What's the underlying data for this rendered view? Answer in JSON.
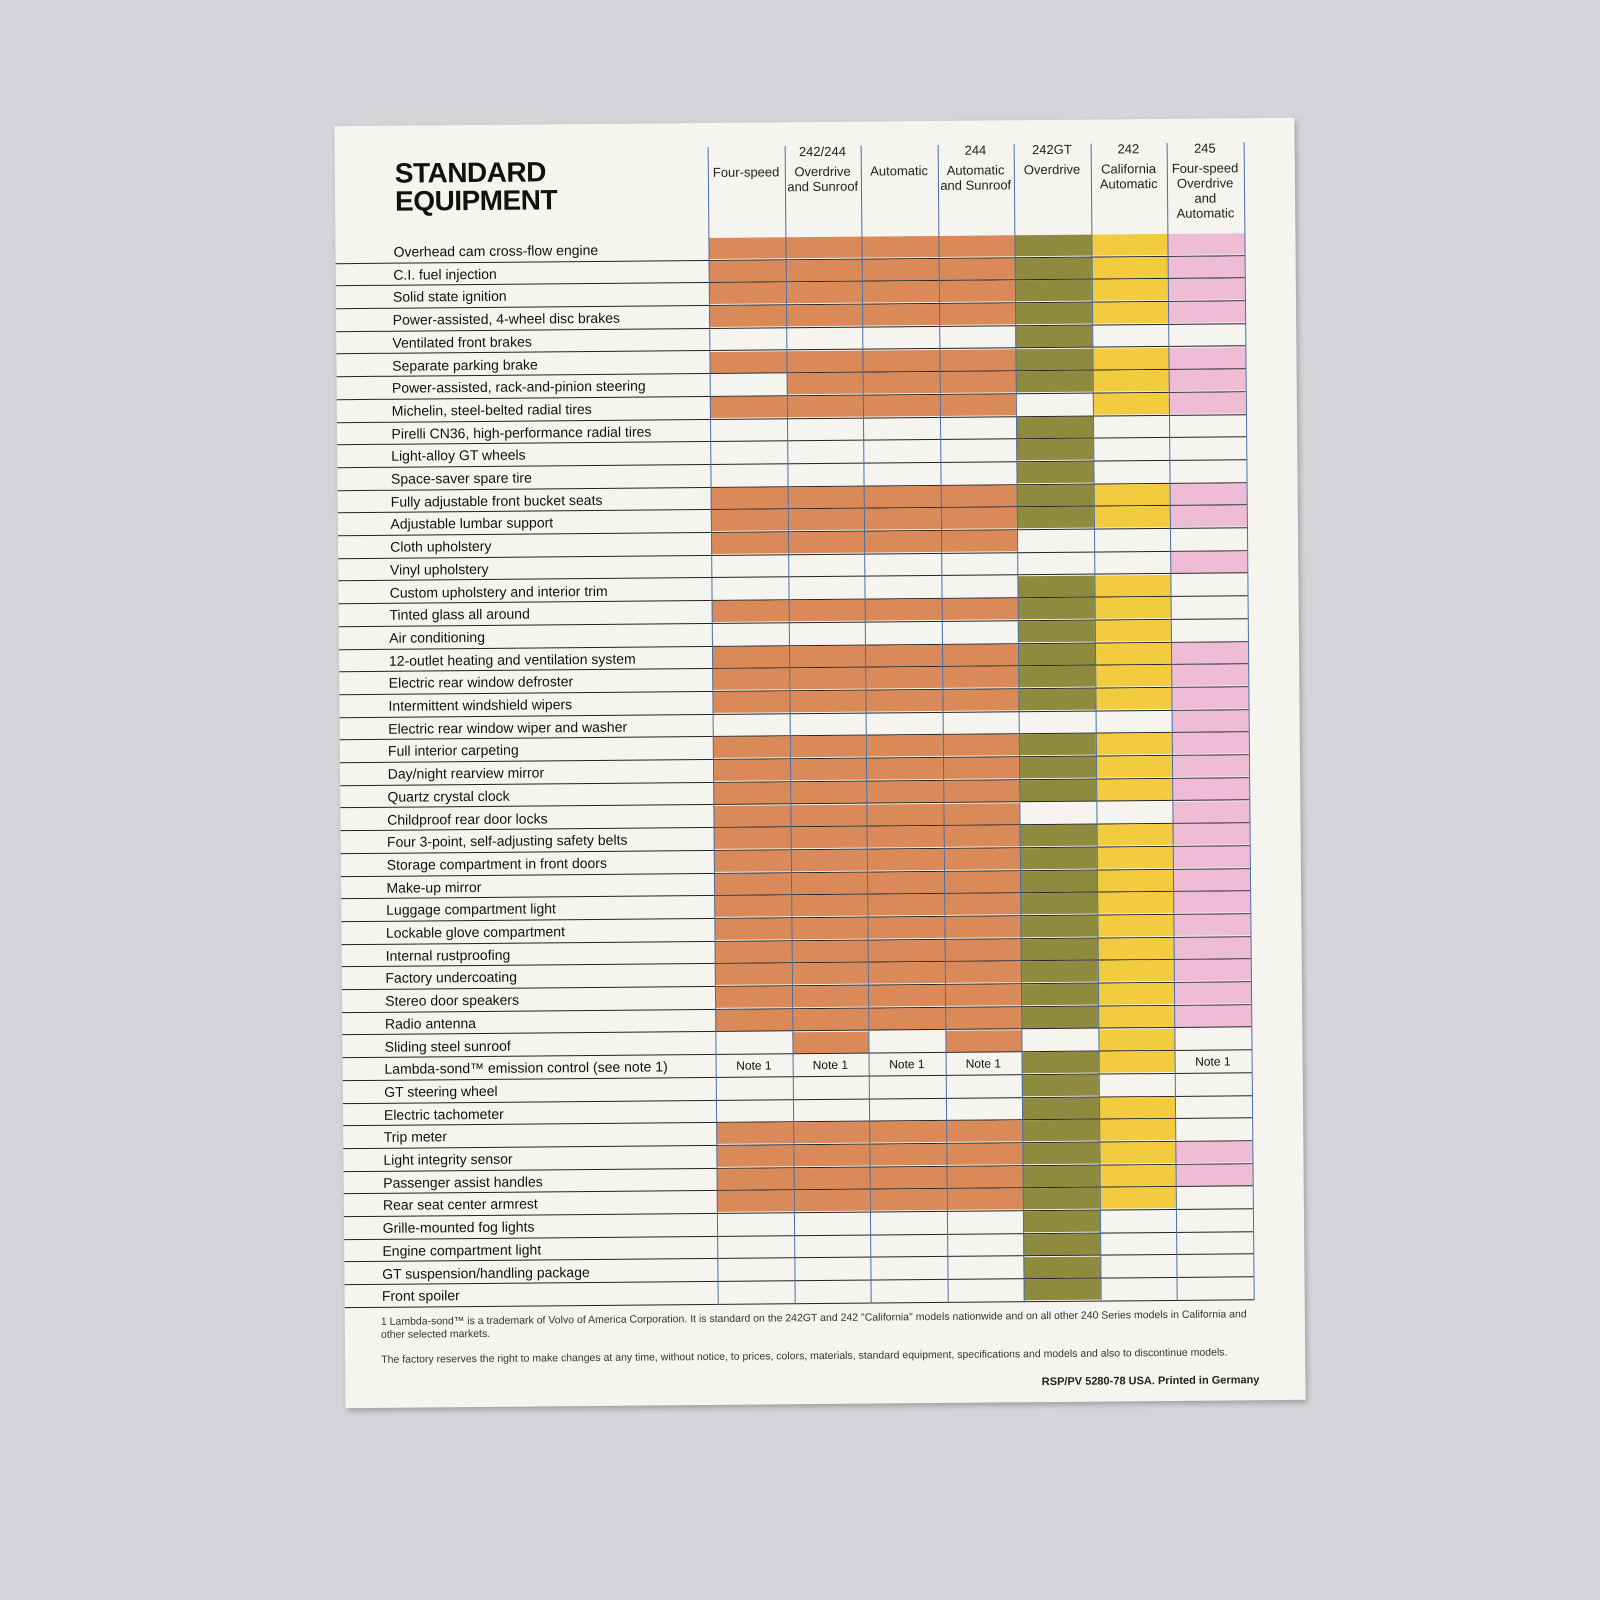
{
  "header": {
    "title": "STANDARD EQUIPMENT"
  },
  "table": {
    "groups": [
      {
        "label": "242/244",
        "span": 3
      },
      {
        "label": "244",
        "span": 1
      },
      {
        "label": "242GT",
        "span": 1
      },
      {
        "label": "242",
        "span": 1
      },
      {
        "label": "245",
        "span": 1
      }
    ],
    "columns": [
      {
        "label": "Four-speed",
        "color": "#d98a58"
      },
      {
        "label": "Overdrive and Sunroof",
        "color": "#d98a58"
      },
      {
        "label": "Automatic",
        "color": "#d98a58"
      },
      {
        "label": "Automatic and Sunroof",
        "color": "#d98a58"
      },
      {
        "label": "Overdrive",
        "color": "#8e8a3e"
      },
      {
        "label": "California Automatic",
        "color": "#f2cb3e"
      },
      {
        "label": "Four-speed Overdrive and Automatic",
        "color": "#efbcd6"
      }
    ],
    "rows": [
      {
        "label": "Overhead cam cross-flow engine",
        "cells": [
          true,
          true,
          true,
          true,
          true,
          true,
          true
        ]
      },
      {
        "label": "C.I. fuel injection",
        "cells": [
          true,
          true,
          true,
          true,
          true,
          true,
          true
        ]
      },
      {
        "label": "Solid state ignition",
        "cells": [
          true,
          true,
          true,
          true,
          true,
          true,
          true
        ]
      },
      {
        "label": "Power-assisted, 4-wheel disc brakes",
        "cells": [
          true,
          true,
          true,
          true,
          true,
          true,
          true
        ]
      },
      {
        "label": "Ventilated front brakes",
        "cells": [
          false,
          false,
          false,
          false,
          true,
          false,
          false
        ]
      },
      {
        "label": "Separate parking brake",
        "cells": [
          true,
          true,
          true,
          true,
          true,
          true,
          true
        ]
      },
      {
        "label": "Power-assisted, rack-and-pinion steering",
        "cells": [
          false,
          true,
          true,
          true,
          true,
          true,
          true
        ]
      },
      {
        "label": "Michelin, steel-belted radial tires",
        "cells": [
          true,
          true,
          true,
          true,
          false,
          true,
          true
        ]
      },
      {
        "label": "Pirelli CN36, high-performance radial tires",
        "cells": [
          false,
          false,
          false,
          false,
          true,
          false,
          false
        ]
      },
      {
        "label": "Light-alloy GT wheels",
        "cells": [
          false,
          false,
          false,
          false,
          true,
          false,
          false
        ]
      },
      {
        "label": "Space-saver spare tire",
        "cells": [
          false,
          false,
          false,
          false,
          true,
          false,
          false
        ]
      },
      {
        "label": "Fully adjustable front bucket seats",
        "cells": [
          true,
          true,
          true,
          true,
          true,
          true,
          true
        ]
      },
      {
        "label": "Adjustable lumbar support",
        "cells": [
          true,
          true,
          true,
          true,
          true,
          true,
          true
        ]
      },
      {
        "label": "Cloth upholstery",
        "cells": [
          true,
          true,
          true,
          true,
          false,
          false,
          false
        ]
      },
      {
        "label": "Vinyl upholstery",
        "cells": [
          false,
          false,
          false,
          false,
          false,
          false,
          true
        ]
      },
      {
        "label": "Custom upholstery and interior trim",
        "cells": [
          false,
          false,
          false,
          false,
          true,
          true,
          false
        ]
      },
      {
        "label": "Tinted glass all around",
        "cells": [
          true,
          true,
          true,
          true,
          true,
          true,
          false
        ]
      },
      {
        "label": "Air conditioning",
        "cells": [
          false,
          false,
          false,
          false,
          true,
          true,
          false
        ]
      },
      {
        "label": "12-outlet heating and ventilation system",
        "cells": [
          true,
          true,
          true,
          true,
          true,
          true,
          true
        ]
      },
      {
        "label": "Electric rear window defroster",
        "cells": [
          true,
          true,
          true,
          true,
          true,
          true,
          true
        ]
      },
      {
        "label": "Intermittent windshield wipers",
        "cells": [
          true,
          true,
          true,
          true,
          true,
          true,
          true
        ]
      },
      {
        "label": "Electric rear window wiper and washer",
        "cells": [
          false,
          false,
          false,
          false,
          false,
          false,
          true
        ]
      },
      {
        "label": "Full interior carpeting",
        "cells": [
          true,
          true,
          true,
          true,
          true,
          true,
          true
        ]
      },
      {
        "label": "Day/night rearview mirror",
        "cells": [
          true,
          true,
          true,
          true,
          true,
          true,
          true
        ]
      },
      {
        "label": "Quartz crystal clock",
        "cells": [
          true,
          true,
          true,
          true,
          true,
          true,
          true
        ]
      },
      {
        "label": "Childproof rear door locks",
        "cells": [
          true,
          true,
          true,
          true,
          false,
          false,
          true
        ]
      },
      {
        "label": "Four 3-point, self-adjusting safety belts",
        "cells": [
          true,
          true,
          true,
          true,
          true,
          true,
          true
        ]
      },
      {
        "label": "Storage compartment in front doors",
        "cells": [
          true,
          true,
          true,
          true,
          true,
          true,
          true
        ]
      },
      {
        "label": "Make-up mirror",
        "cells": [
          true,
          true,
          true,
          true,
          true,
          true,
          true
        ]
      },
      {
        "label": "Luggage compartment light",
        "cells": [
          true,
          true,
          true,
          true,
          true,
          true,
          true
        ]
      },
      {
        "label": "Lockable glove compartment",
        "cells": [
          true,
          true,
          true,
          true,
          true,
          true,
          true
        ]
      },
      {
        "label": "Internal rustproofing",
        "cells": [
          true,
          true,
          true,
          true,
          true,
          true,
          true
        ]
      },
      {
        "label": "Factory undercoating",
        "cells": [
          true,
          true,
          true,
          true,
          true,
          true,
          true
        ]
      },
      {
        "label": "Stereo door speakers",
        "cells": [
          true,
          true,
          true,
          true,
          true,
          true,
          true
        ]
      },
      {
        "label": "Radio antenna",
        "cells": [
          true,
          true,
          true,
          true,
          true,
          true,
          true
        ]
      },
      {
        "label": "Sliding steel sunroof",
        "cells": [
          false,
          true,
          false,
          true,
          false,
          true,
          false
        ]
      },
      {
        "label": "Lambda-sond™ emission control (see note 1)",
        "cells": [
          "Note 1",
          "Note 1",
          "Note 1",
          "Note 1",
          true,
          true,
          "Note 1"
        ]
      },
      {
        "label": "GT steering wheel",
        "cells": [
          false,
          false,
          false,
          false,
          true,
          false,
          false
        ]
      },
      {
        "label": "Electric tachometer",
        "cells": [
          false,
          false,
          false,
          false,
          true,
          true,
          false
        ]
      },
      {
        "label": "Trip meter",
        "cells": [
          true,
          true,
          true,
          true,
          true,
          true,
          false
        ]
      },
      {
        "label": "Light integrity sensor",
        "cells": [
          true,
          true,
          true,
          true,
          true,
          true,
          true
        ]
      },
      {
        "label": "Passenger assist handles",
        "cells": [
          true,
          true,
          true,
          true,
          true,
          true,
          true
        ]
      },
      {
        "label": "Rear seat center armrest",
        "cells": [
          true,
          true,
          true,
          true,
          true,
          true,
          false
        ]
      },
      {
        "label": "Grille-mounted fog lights",
        "cells": [
          false,
          false,
          false,
          false,
          true,
          false,
          false
        ]
      },
      {
        "label": "Engine compartment light",
        "cells": [
          false,
          false,
          false,
          false,
          true,
          false,
          false
        ]
      },
      {
        "label": "GT suspension/handling package",
        "cells": [
          false,
          false,
          false,
          false,
          true,
          false,
          false
        ]
      },
      {
        "label": "Front spoiler",
        "cells": [
          false,
          false,
          false,
          false,
          true,
          false,
          false
        ]
      }
    ]
  },
  "footnotes": [
    "1 Lambda-sond™ is a trademark of Volvo of America Corporation. It is standard on the 242GT and 242 \"California\" models nationwide and on all other 240 Series models in California and other selected markets.",
    "The factory reserves the right to make changes at any time, without notice, to prices, colors, materials, standard equipment, specifications and models and also to discontinue models."
  ],
  "footer": "RSP/PV 5280-78 USA. Printed in Germany"
}
